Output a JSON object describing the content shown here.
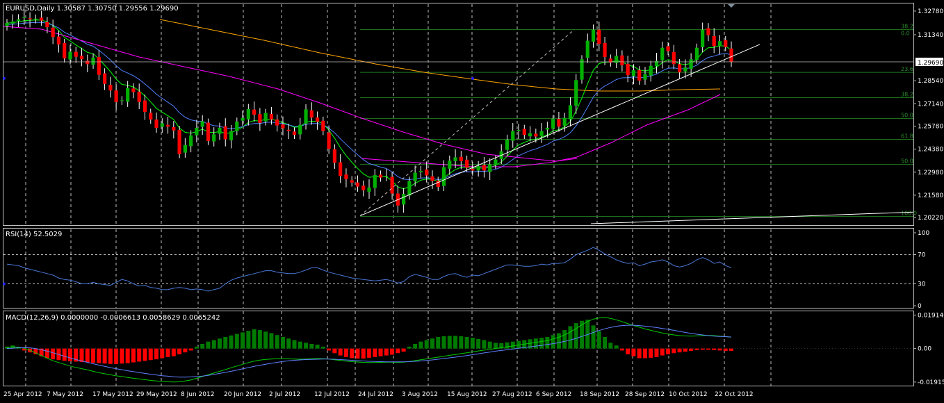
{
  "main_header": "EURUSD,Daily  1.30587 1.30750 1.29556 1.29690",
  "rsi_header": "RSI(14) 52.5029",
  "macd_header": "MACD(12,26,9) 0.0000000 -0.0006613 0.0058629 0.0065242",
  "colors": {
    "background": "#000000",
    "grid": "#c0c0c0",
    "bull": "#00b000",
    "bear": "#ff0000",
    "ma_fast": "#00ff00",
    "ma_mid": "#5080ff",
    "ma_slow": "#ff00ff",
    "ma_long": "#ffa500",
    "fib": "#1f7a1f",
    "fib_text": "#2e8b2e",
    "trendline": "#ffffff",
    "rsi": "#4a78d8",
    "macd_hist_pos": "#007a00",
    "macd_hist_neg": "#ff0000",
    "macd_line": "#00cc00",
    "signal_line": "#6080ff",
    "price_label_bg": "#ffffff"
  },
  "chart_data": [
    {
      "type": "candlestick",
      "symbol": "EURUSD",
      "timeframe": "Daily",
      "ylim": [
        1.198,
        1.332
      ],
      "y_ticks": [
        "1.32780",
        "1.31340",
        "1.28540",
        "1.27140",
        "1.25780",
        "1.24380",
        "1.22980",
        "1.21580",
        "1.20220"
      ],
      "current_price": "1.29690",
      "x_labels": [
        "25 Apr 2012",
        "7 May 2012",
        "17 May 2012",
        "29 May 2012",
        "8 Jun 2012",
        "20 Jun 2012",
        "2 Jul 2012",
        "12 Jul 2012",
        "24 Jul 2012",
        "3 Aug 2012",
        "15 Aug 2012",
        "27 Aug 2012",
        "6 Sep 2012",
        "18 Sep 2012",
        "28 Sep 2012",
        "10 Oct 2012",
        "22 Oct 2012"
      ],
      "closes": [
        1.3205,
        1.3215,
        1.3228,
        1.324,
        1.3228,
        1.3232,
        1.322,
        1.318,
        1.312,
        1.3075,
        1.299,
        1.303,
        1.3,
        1.2985,
        1.2955,
        1.2995,
        1.289,
        1.2835,
        1.2795,
        1.2725,
        1.2735,
        1.281,
        1.2785,
        1.2725,
        1.2665,
        1.2618,
        1.2568,
        1.2595,
        1.2575,
        1.2552,
        1.2408,
        1.2462,
        1.2522,
        1.2568,
        1.2608,
        1.2488,
        1.2528,
        1.2568,
        1.2498,
        1.2548,
        1.2605,
        1.2628,
        1.2682,
        1.2648,
        1.2598,
        1.2658,
        1.2618,
        1.2582,
        1.2565,
        1.2548,
        1.2525,
        1.2585,
        1.268,
        1.263,
        1.2605,
        1.2548,
        1.244,
        1.2355,
        1.2275,
        1.2255,
        1.2235,
        1.221,
        1.2188,
        1.2205,
        1.228,
        1.2265,
        1.2275,
        1.2168,
        1.2095,
        1.2165,
        1.2245,
        1.2295,
        1.2305,
        1.2278,
        1.2245,
        1.2208,
        1.2328,
        1.2368,
        1.2388,
        1.2365,
        1.2325,
        1.2308,
        1.2335,
        1.2308,
        1.2345,
        1.2375,
        1.2425,
        1.2495,
        1.2548,
        1.2555,
        1.2525,
        1.2535,
        1.2515,
        1.2548,
        1.2568,
        1.2622,
        1.2575,
        1.2628,
        1.2705,
        1.2858,
        1.2985,
        1.3098,
        1.3165,
        1.3078,
        1.2998,
        1.2965,
        1.3005,
        1.2948,
        1.2888,
        1.2918,
        1.2855,
        1.2895,
        1.2945,
        1.2975,
        1.3055,
        1.3035,
        1.2955,
        1.2905,
        1.2935,
        1.2985,
        1.3055,
        1.3165,
        1.3132,
        1.3065,
        1.3095,
        1.3059,
        1.2969
      ],
      "annotations": {
        "fib_levels": [
          "38.2",
          "0.0",
          "23.6",
          "38.2",
          "50.0",
          "61.8",
          "50.0",
          "100.0"
        ]
      }
    },
    {
      "type": "line",
      "name": "RSI(14)",
      "ylim": [
        0,
        100
      ],
      "y_ticks": [
        "100",
        "70",
        "30",
        "0"
      ],
      "levels": [
        70,
        30
      ],
      "values": [
        57,
        56,
        55,
        52,
        50,
        48,
        46,
        44,
        42,
        38,
        36,
        35,
        33,
        30,
        30,
        32,
        30,
        29,
        28,
        32,
        36,
        34,
        30,
        27,
        28,
        25,
        24,
        22,
        22,
        24,
        25,
        24,
        22,
        23,
        22,
        20,
        22,
        24,
        30,
        35,
        38,
        40,
        42,
        44,
        46,
        48,
        48,
        46,
        45,
        44,
        44,
        46,
        49,
        52,
        52,
        49,
        46,
        44,
        42,
        40,
        38,
        37,
        36,
        35,
        34,
        35,
        36,
        34,
        31,
        33,
        40,
        43,
        41,
        39,
        36,
        36,
        40,
        43,
        44,
        41,
        39,
        42,
        41,
        44,
        47,
        50,
        53,
        56,
        56,
        55,
        54,
        54,
        55,
        57,
        56,
        58,
        58,
        59,
        64,
        70,
        73,
        76,
        80,
        76,
        71,
        67,
        63,
        60,
        58,
        59,
        55,
        57,
        60,
        61,
        63,
        60,
        55,
        53,
        55,
        58,
        63,
        66,
        63,
        58,
        60,
        55,
        52
      ],
      "current": "52.5029"
    },
    {
      "type": "bar_line",
      "name": "MACD(12,26,9)",
      "ylim": [
        -0.0208,
        0.0205
      ],
      "y_ticks": [
        "0.019140",
        "0.00",
        "-0.019153"
      ],
      "histogram": [
        0.0005,
        0.0008,
        0.0003,
        -0.0005,
        -0.001,
        -0.0015,
        -0.002,
        -0.0025,
        -0.0028,
        -0.003,
        -0.0032,
        -0.0033,
        -0.0034,
        -0.0035,
        -0.0036,
        -0.0037,
        -0.0038,
        -0.0039,
        -0.004,
        -0.004,
        -0.0039,
        -0.0038,
        -0.0036,
        -0.0034,
        -0.0032,
        -0.003,
        -0.0028,
        -0.0025,
        -0.0022,
        -0.002,
        -0.0015,
        -0.001,
        -0.0005,
        0.0005,
        0.0012,
        0.0018,
        0.0022,
        0.0026,
        0.003,
        0.0034,
        0.0038,
        0.0042,
        0.0046,
        0.005,
        0.0048,
        0.0044,
        0.004,
        0.0035,
        0.003,
        0.0026,
        0.0022,
        0.0018,
        0.0015,
        0.0012,
        0.001,
        0.0005,
        -0.0005,
        -0.0012,
        -0.0018,
        -0.0022,
        -0.0025,
        -0.0026,
        -0.0026,
        -0.0024,
        -0.0022,
        -0.002,
        -0.0018,
        -0.0016,
        -0.0012,
        -0.0008,
        0.0005,
        0.0012,
        0.0018,
        0.0022,
        0.0026,
        0.003,
        0.0032,
        0.0033,
        0.0033,
        0.0032,
        0.003,
        0.0028,
        0.0025,
        0.0022,
        0.0018,
        0.0015,
        0.0014,
        0.0016,
        0.0018,
        0.002,
        0.0022,
        0.0024,
        0.0026,
        0.0028,
        0.003,
        0.0035,
        0.004,
        0.0048,
        0.0058,
        0.0066,
        0.0072,
        0.0075,
        0.006,
        0.0045,
        0.003,
        0.0015,
        0.0008,
        -0.0005,
        -0.0015,
        -0.002,
        -0.0025,
        -0.0025,
        -0.0024,
        -0.0022,
        -0.0018,
        -0.0015,
        -0.0012,
        -0.001,
        -0.0008,
        -0.0006,
        -0.0004,
        -0.0003,
        -0.0003,
        -0.0004,
        -0.0005,
        -0.0006,
        -0.0006
      ],
      "macd": [
        0.0005,
        0.001,
        0.0008,
        0.0002,
        -0.001,
        -0.0025,
        -0.004,
        -0.0055,
        -0.007,
        -0.008,
        -0.009,
        -0.01,
        -0.0108,
        -0.0115,
        -0.0122,
        -0.013,
        -0.0138,
        -0.0144,
        -0.015,
        -0.0156,
        -0.016,
        -0.0165,
        -0.017,
        -0.0174,
        -0.0178,
        -0.0182,
        -0.0185,
        -0.0188,
        -0.019,
        -0.0191,
        -0.019,
        -0.0185,
        -0.018,
        -0.017,
        -0.016,
        -0.015,
        -0.014,
        -0.013,
        -0.012,
        -0.011,
        -0.01,
        -0.009,
        -0.008,
        -0.0072,
        -0.0066,
        -0.0062,
        -0.006,
        -0.0058,
        -0.0058,
        -0.0059,
        -0.006,
        -0.0061,
        -0.006,
        -0.0058,
        -0.0057,
        -0.0058,
        -0.006,
        -0.0064,
        -0.0068,
        -0.0072,
        -0.0075,
        -0.0077,
        -0.0079,
        -0.008,
        -0.008,
        -0.0079,
        -0.0078,
        -0.0078,
        -0.0079,
        -0.0078,
        -0.0074,
        -0.0069,
        -0.0064,
        -0.0059,
        -0.0054,
        -0.0049,
        -0.0044,
        -0.0039,
        -0.0034,
        -0.0029,
        -0.0024,
        -0.0019,
        -0.0014,
        -0.0009,
        -0.0005,
        0.0,
        0.0005,
        0.001,
        0.0015,
        0.002,
        0.0025,
        0.003,
        0.0035,
        0.004,
        0.0045,
        0.0055,
        0.0065,
        0.0078,
        0.0095,
        0.0115,
        0.0135,
        0.0155,
        0.0168,
        0.0175,
        0.0178,
        0.0172,
        0.0164,
        0.0154,
        0.0142,
        0.0132,
        0.0122,
        0.0112,
        0.0104,
        0.0096,
        0.0089,
        0.0083,
        0.0078,
        0.0074,
        0.0072,
        0.0071,
        0.0072,
        0.0074,
        0.0075,
        0.0074,
        0.0071,
        0.0068,
        0.0065
      ],
      "signal": [
        0.0,
        0.0002,
        0.0004,
        0.0005,
        0.0004,
        0.0,
        -0.0007,
        -0.0015,
        -0.0024,
        -0.0034,
        -0.0044,
        -0.0054,
        -0.0063,
        -0.0071,
        -0.0079,
        -0.0087,
        -0.0095,
        -0.0102,
        -0.0109,
        -0.0115,
        -0.0121,
        -0.0127,
        -0.0132,
        -0.0137,
        -0.0142,
        -0.0147,
        -0.0151,
        -0.0155,
        -0.0158,
        -0.0161,
        -0.0163,
        -0.0163,
        -0.0162,
        -0.016,
        -0.0157,
        -0.0153,
        -0.0148,
        -0.0142,
        -0.0136,
        -0.013,
        -0.0123,
        -0.0116,
        -0.0109,
        -0.0102,
        -0.0096,
        -0.009,
        -0.0084,
        -0.0079,
        -0.0074,
        -0.007,
        -0.0067,
        -0.0065,
        -0.0063,
        -0.0062,
        -0.0061,
        -0.006,
        -0.006,
        -0.0061,
        -0.0063,
        -0.0065,
        -0.0067,
        -0.0069,
        -0.0071,
        -0.0073,
        -0.0074,
        -0.0075,
        -0.0076,
        -0.0076,
        -0.0076,
        -0.0076,
        -0.0075,
        -0.0073,
        -0.0071,
        -0.0068,
        -0.0065,
        -0.0061,
        -0.0057,
        -0.0053,
        -0.0049,
        -0.0045,
        -0.004,
        -0.0035,
        -0.003,
        -0.0025,
        -0.002,
        -0.0015,
        -0.0011,
        -0.0007,
        -0.0003,
        0.0002,
        0.0006,
        0.001,
        0.0014,
        0.0018,
        0.0023,
        0.0028,
        0.0034,
        0.0041,
        0.0049,
        0.0058,
        0.0069,
        0.008,
        0.0092,
        0.0103,
        0.0113,
        0.0121,
        0.0127,
        0.0131,
        0.0133,
        0.0133,
        0.0131,
        0.0128,
        0.0124,
        0.012,
        0.0115,
        0.011,
        0.0104,
        0.0098,
        0.0092,
        0.0087,
        0.0082,
        0.0078,
        0.0074,
        0.0071,
        0.0069,
        0.0068,
        0.0066
      ]
    }
  ]
}
